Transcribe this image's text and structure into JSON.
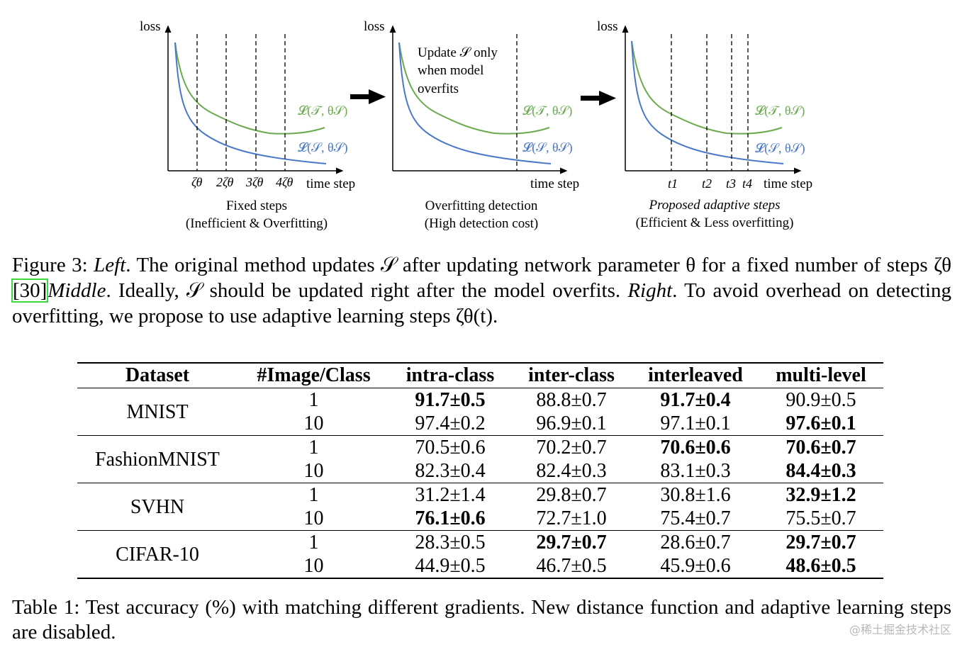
{
  "figure": {
    "panels": [
      {
        "ylabel": "loss",
        "xlabel": "time step",
        "top_curve": "𝓛(𝒯, θ𝒮)",
        "bottom_curve": "𝓛(𝒮, θ𝒮)",
        "ticks": [
          "ζθ",
          "2ζθ",
          "3ζθ",
          "4ζθ"
        ],
        "caption_line1": "Fixed steps",
        "caption_line2": "(Inefficient & Overfitting)"
      },
      {
        "ylabel": "loss",
        "xlabel": "time step",
        "top_curve": "𝓛(𝒯, θ𝒮)",
        "bottom_curve": "𝓛(𝒮, θ𝒮)",
        "note": [
          "Update 𝒮 only",
          "when model",
          "overfits"
        ],
        "caption_line1": "Overfitting detection",
        "caption_line2": "(High detection cost)"
      },
      {
        "ylabel": "loss",
        "xlabel": "time step",
        "top_curve": "𝓛(𝒯, θ𝒮)",
        "bottom_curve": "𝓛(𝒮, θ𝒮)",
        "ticks": [
          "t1",
          "t2",
          "t3",
          "t4"
        ],
        "caption_line1": "Proposed adaptive steps",
        "caption_line2": "(Efficient & Less overfitting)"
      }
    ],
    "colors": {
      "top_curve": "#6aab4f",
      "bottom_curve": "#4a78c8"
    }
  },
  "figure_caption": {
    "label": "Figure 3:",
    "left": "Left",
    "left_text": ". The original method updates 𝒮 after updating network parameter θ for a fixed number of steps ζθ ",
    "cite": "[30]",
    "middle": "Middle",
    "middle_text": ". Ideally, 𝒮 should be updated right after the model overfits. ",
    "right": "Right",
    "right_text": ". To avoid overhead on detecting overfitting, we propose to use adaptive learning steps ζθ(t)."
  },
  "table": {
    "headers": [
      "Dataset",
      "#Image/Class",
      "intra-class",
      "inter-class",
      "interleaved",
      "multi-level"
    ],
    "groups": [
      {
        "dataset": "MNIST",
        "rows": [
          {
            "n": "1",
            "cells": [
              "91.7±0.5",
              "88.8±0.7",
              "91.7±0.4",
              "90.9±0.5"
            ]
          },
          {
            "n": "10",
            "cells": [
              "97.4±0.2",
              "96.9±0.1",
              "97.1±0.1",
              "97.6±0.1"
            ]
          }
        ]
      },
      {
        "dataset": "FashionMNIST",
        "rows": [
          {
            "n": "1",
            "cells": [
              "70.5±0.6",
              "70.2±0.7",
              "70.6±0.6",
              "70.6±0.7"
            ]
          },
          {
            "n": "10",
            "cells": [
              "82.3±0.4",
              "82.4±0.3",
              "83.1±0.3",
              "84.4±0.3"
            ]
          }
        ]
      },
      {
        "dataset": "SVHN",
        "rows": [
          {
            "n": "1",
            "cells": [
              "31.2±1.4",
              "29.8±0.7",
              "30.8±1.6",
              "32.9±1.2"
            ]
          },
          {
            "n": "10",
            "cells": [
              "76.1±0.6",
              "72.7±1.0",
              "75.4±0.7",
              "75.5±0.7"
            ]
          }
        ]
      },
      {
        "dataset": "CIFAR-10",
        "rows": [
          {
            "n": "1",
            "cells": [
              "28.3±0.5",
              "29.7±0.7",
              "28.6±0.7",
              "29.7±0.7"
            ]
          },
          {
            "n": "10",
            "cells": [
              "44.9±0.5",
              "46.7±0.5",
              "45.9±0.6",
              "48.6±0.5"
            ]
          }
        ]
      }
    ],
    "bold": [
      [
        0,
        0,
        0
      ],
      [
        0,
        0,
        2
      ],
      [
        0,
        1,
        3
      ],
      [
        1,
        0,
        2
      ],
      [
        1,
        0,
        3
      ],
      [
        1,
        1,
        3
      ],
      [
        2,
        0,
        3
      ],
      [
        2,
        1,
        0
      ],
      [
        3,
        0,
        1
      ],
      [
        3,
        0,
        3
      ],
      [
        3,
        1,
        3
      ]
    ]
  },
  "table_caption": "Table 1: Test accuracy (%) with matching different gradients. New distance function and adaptive learning steps are disabled.",
  "watermark": "@稀土掘金技术社区"
}
